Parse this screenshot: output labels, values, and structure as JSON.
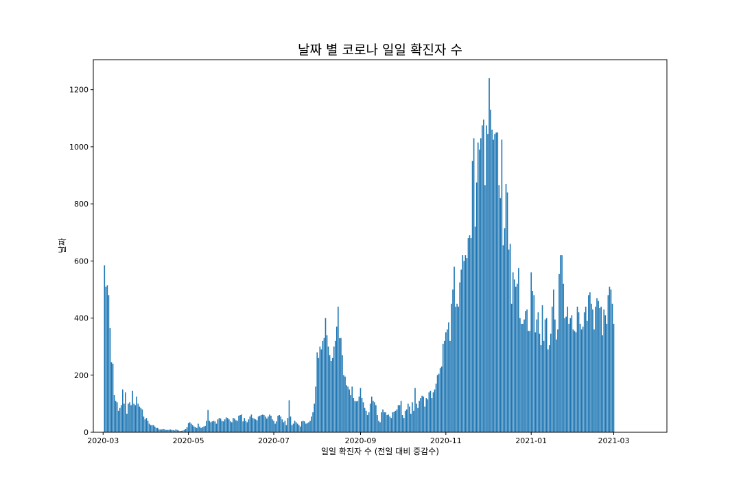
{
  "chart_data": {
    "type": "bar",
    "title": "날짜 별 코로나 일일 확진자 수",
    "xlabel": "일일 확진자 수 (전일 대비 증감수)",
    "ylabel": "날짜",
    "bar_color": "#1f77b4",
    "grid": false,
    "xlim": [
      "2020-02-23",
      "2021-04-08"
    ],
    "ylim": [
      0,
      1305
    ],
    "x_ticks": [
      "2020-03",
      "2020-05",
      "2020-07",
      "2020-09",
      "2020-11",
      "2021-01",
      "2021-03"
    ],
    "x_tick_dates": [
      "2020-03-01",
      "2020-05-01",
      "2020-07-01",
      "2020-09-01",
      "2020-11-01",
      "2021-01-01",
      "2021-03-01"
    ],
    "y_ticks": [
      "0",
      "200",
      "400",
      "600",
      "800",
      "1000",
      "1200"
    ],
    "y_tick_values": [
      0,
      200,
      400,
      600,
      800,
      1000,
      1200
    ],
    "series": [
      {
        "start_date": "2020-03-02",
        "values": [
          585,
          510,
          515,
          480,
          365,
          245,
          240,
          130,
          110,
          105,
          75,
          85,
          95,
          150,
          100,
          140,
          65,
          100,
          105,
          95,
          145,
          100,
          95,
          125,
          100,
          90,
          85,
          80,
          55,
          45,
          50,
          40,
          30,
          25,
          25,
          25,
          20,
          15,
          15,
          10,
          10,
          10,
          12,
          10,
          8,
          8,
          8,
          10,
          8,
          8,
          6,
          10,
          8,
          6,
          5,
          5,
          6,
          8,
          12,
          18,
          32,
          35,
          30,
          25,
          20,
          18,
          15,
          30,
          20,
          15,
          18,
          20,
          22,
          40,
          78,
          40,
          35,
          38,
          40,
          38,
          30,
          45,
          50,
          48,
          40,
          38,
          45,
          52,
          50,
          45,
          38,
          35,
          50,
          48,
          42,
          40,
          58,
          60,
          62,
          38,
          50,
          40,
          35,
          45,
          55,
          62,
          50,
          48,
          45,
          42,
          55,
          58,
          60,
          62,
          60,
          55,
          48,
          55,
          62,
          58,
          45,
          40,
          30,
          38,
          58,
          60,
          55,
          45,
          35,
          40,
          25,
          50,
          112,
          55,
          25,
          30,
          40,
          35,
          30,
          25,
          20,
          38,
          40,
          38,
          30,
          32,
          35,
          40,
          55,
          70,
          100,
          160,
          280,
          260,
          300,
          290,
          320,
          330,
          400,
          340,
          300,
          270,
          250,
          260,
          300,
          320,
          370,
          440,
          330,
          330,
          270,
          200,
          195,
          165,
          160,
          150,
          130,
          160,
          120,
          110,
          108,
          110,
          125,
          155,
          120,
          105,
          85,
          75,
          60,
          70,
          100,
          125,
          110,
          105,
          95,
          60,
          40,
          35,
          70,
          80,
          70,
          70,
          60,
          62,
          55,
          50,
          70,
          72,
          75,
          80,
          95,
          95,
          110,
          60,
          50,
          75,
          80,
          100,
          90,
          65,
          105,
          75,
          155,
          100,
          85,
          110,
          120,
          128,
          125,
          90,
          120,
          115,
          140,
          145,
          120,
          140,
          150,
          170,
          200,
          205,
          225,
          230,
          310,
          320,
          350,
          360,
          385,
          320,
          450,
          500,
          580,
          440,
          450,
          440,
          525,
          570,
          620,
          600,
          620,
          610,
          680,
          690,
          680,
          950,
          1030,
          720,
          875,
          1015,
          990,
          1030,
          1075,
          1095,
          865,
          1075,
          1045,
          1240,
          1130,
          1060,
          1025,
          1045,
          1050,
          1050,
          865,
          820,
          1025,
          655,
          715,
          870,
          840,
          640,
          660,
          450,
          560,
          535,
          510,
          520,
          575,
          400,
          380,
          380,
          395,
          425,
          430,
          355,
          355,
          560,
          495,
          480,
          350,
          395,
          420,
          345,
          305,
          445,
          320,
          395,
          400,
          290,
          305,
          345,
          440,
          500,
          395,
          325,
          360,
          555,
          620,
          620,
          520,
          400,
          405,
          440,
          380,
          400,
          410,
          360,
          355,
          350,
          440,
          420,
          380,
          360,
          370,
          420,
          440,
          390,
          480,
          490,
          450,
          430,
          360,
          440,
          470,
          460,
          435,
          440,
          340,
          430,
          410,
          380,
          480,
          510,
          500,
          450,
          380
        ]
      }
    ]
  }
}
